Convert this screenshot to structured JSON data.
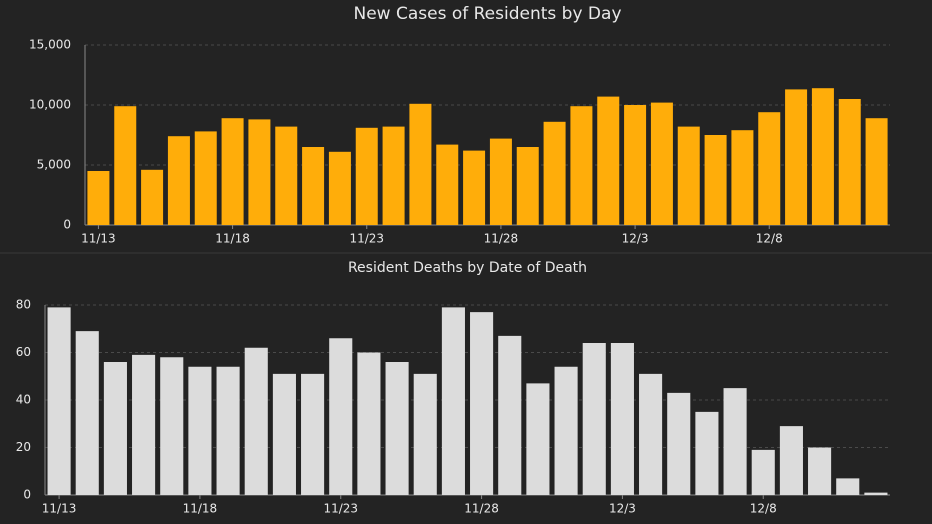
{
  "chart_data": [
    {
      "type": "bar",
      "title": "New Cases of Residents by Day",
      "categories": [
        "11/13",
        null,
        null,
        null,
        null,
        "11/18",
        null,
        null,
        null,
        null,
        "11/23",
        null,
        null,
        null,
        null,
        "11/28",
        null,
        null,
        null,
        null,
        "12/3",
        null,
        null,
        null,
        null,
        "12/8",
        null,
        null,
        null,
        null
      ],
      "values": [
        4500,
        9900,
        4600,
        7400,
        7800,
        8900,
        8800,
        8200,
        6500,
        6100,
        8100,
        8200,
        10100,
        6700,
        6200,
        7200,
        6500,
        8600,
        9900,
        10700,
        10000,
        10200,
        8200,
        7500,
        7900,
        9400,
        11300,
        11400,
        10500,
        8900
      ],
      "color": "#ffad0a",
      "ylim": [
        0,
        15000
      ],
      "yticks": [
        0,
        {
          "value": 5000,
          "label": "5,000"
        },
        {
          "value": 10000,
          "label": "10,000"
        },
        {
          "value": 15000,
          "label": "15,000"
        }
      ],
      "grid": true
    },
    {
      "type": "bar",
      "title": "Resident Deaths by Date of Death",
      "categories": [
        "11/13",
        null,
        null,
        null,
        null,
        "11/18",
        null,
        null,
        null,
        null,
        "11/23",
        null,
        null,
        null,
        null,
        "11/28",
        null,
        null,
        null,
        null,
        "12/3",
        null,
        null,
        null,
        null,
        "12/8",
        null,
        null,
        null,
        null
      ],
      "values": [
        79,
        69,
        56,
        59,
        58,
        54,
        54,
        62,
        51,
        51,
        66,
        60,
        56,
        51,
        79,
        77,
        67,
        47,
        54,
        64,
        64,
        51,
        43,
        35,
        45,
        19,
        29,
        20,
        7,
        1
      ],
      "color": "#dcdcdc",
      "ylim": [
        0,
        80
      ],
      "yticks": [
        0,
        20,
        40,
        60,
        80
      ],
      "grid": true
    }
  ]
}
